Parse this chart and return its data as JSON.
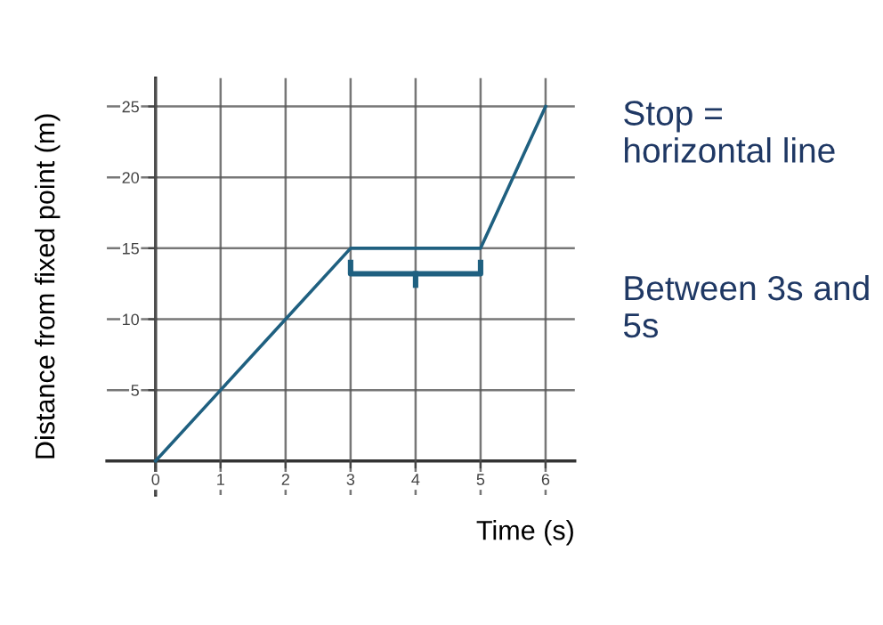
{
  "chart_data": {
    "type": "line",
    "xlabel": "Time (s)",
    "ylabel": "Distance from fixed point (m)",
    "x": [
      0,
      1,
      2,
      3,
      4,
      5,
      6
    ],
    "series": [
      {
        "color": "#1f6080",
        "values": [
          0,
          5,
          10,
          15,
          15,
          15,
          25
        ]
      }
    ],
    "xlim": [
      -0.75,
      6.45
    ],
    "ylim": [
      -2.4,
      27
    ],
    "xticks": [
      0,
      1,
      2,
      3,
      4,
      5,
      6
    ],
    "yticks": [
      {
        "value": 0,
        "label": null
      },
      5,
      10,
      15,
      20,
      25
    ],
    "grid": true,
    "marker": "none",
    "line_style": "solid",
    "annotations": [
      "Stop = horizontal line",
      "Between 3s and 5s"
    ]
  }
}
